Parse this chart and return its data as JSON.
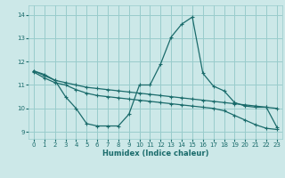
{
  "xlabel": "Humidex (Indice chaleur)",
  "bg_color": "#cce8e8",
  "grid_color": "#99cccc",
  "line_color": "#1a6b6b",
  "xlim": [
    -0.5,
    23.5
  ],
  "ylim": [
    8.7,
    14.4
  ],
  "xticks": [
    0,
    1,
    2,
    3,
    4,
    5,
    6,
    7,
    8,
    9,
    10,
    11,
    12,
    13,
    14,
    15,
    16,
    17,
    18,
    19,
    20,
    21,
    22,
    23
  ],
  "yticks": [
    9,
    10,
    11,
    12,
    13,
    14
  ],
  "line1_x": [
    0,
    1,
    2,
    3,
    4,
    5,
    6,
    7,
    8,
    9,
    10,
    11,
    12,
    13,
    14,
    15,
    16,
    17,
    18,
    19,
    20,
    21,
    22,
    23
  ],
  "line1_y": [
    11.6,
    11.45,
    11.2,
    10.5,
    10.0,
    9.35,
    9.25,
    9.25,
    9.25,
    9.75,
    11.0,
    11.0,
    11.9,
    13.05,
    13.6,
    13.9,
    11.5,
    10.95,
    10.75,
    10.25,
    10.1,
    10.05,
    10.05,
    9.2
  ],
  "line2_x": [
    0,
    1,
    2,
    3,
    4,
    5,
    6,
    7,
    8,
    9,
    10,
    11,
    12,
    13,
    14,
    15,
    16,
    17,
    18,
    19,
    20,
    21,
    22,
    23
  ],
  "line2_y": [
    11.6,
    11.4,
    11.2,
    11.1,
    11.0,
    10.9,
    10.85,
    10.8,
    10.75,
    10.7,
    10.65,
    10.6,
    10.55,
    10.5,
    10.45,
    10.4,
    10.35,
    10.3,
    10.25,
    10.2,
    10.15,
    10.1,
    10.05,
    10.0
  ],
  "line3_x": [
    0,
    1,
    2,
    3,
    4,
    5,
    6,
    7,
    8,
    9,
    10,
    11,
    12,
    13,
    14,
    15,
    16,
    17,
    18,
    19,
    20,
    21,
    22,
    23
  ],
  "line3_y": [
    11.55,
    11.3,
    11.1,
    11.0,
    10.8,
    10.65,
    10.55,
    10.5,
    10.45,
    10.4,
    10.35,
    10.3,
    10.25,
    10.2,
    10.15,
    10.1,
    10.05,
    10.0,
    9.9,
    9.7,
    9.5,
    9.3,
    9.15,
    9.1
  ]
}
